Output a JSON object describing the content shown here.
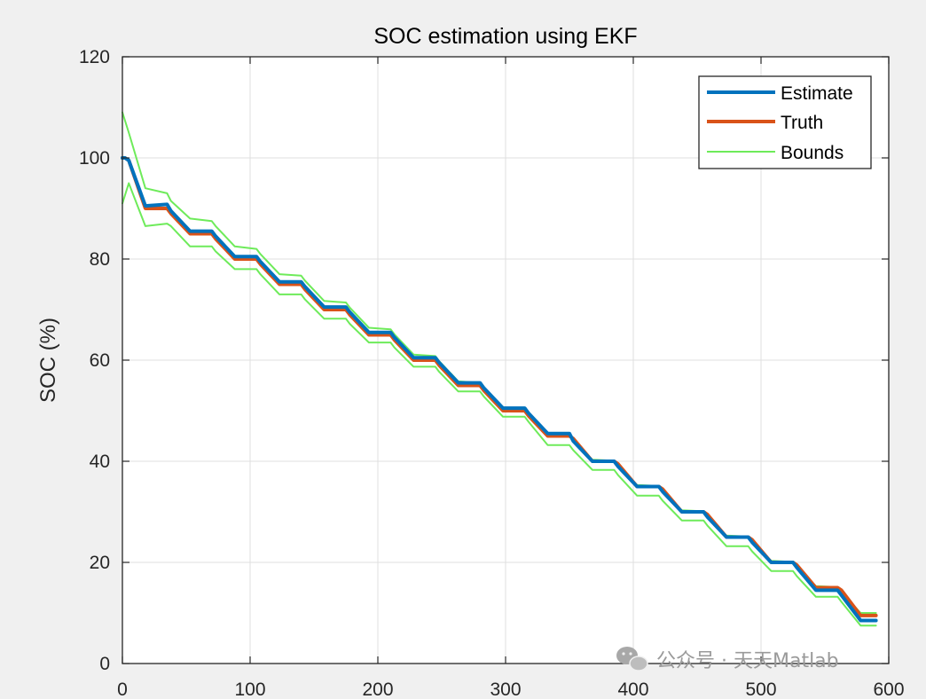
{
  "chart_data": {
    "type": "line",
    "title": "SOC estimation using EKF",
    "xlabel": "",
    "ylabel": "SOC (%)",
    "xlim": [
      0,
      600
    ],
    "ylim": [
      0,
      120
    ],
    "xticks": [
      0,
      100,
      200,
      300,
      400,
      500,
      600
    ],
    "yticks": [
      0,
      20,
      40,
      60,
      80,
      100,
      120
    ],
    "grid": true,
    "legend_position": "top-right",
    "legend": [
      "Estimate",
      "Truth",
      "Bounds"
    ],
    "series": [
      {
        "name": "Estimate",
        "color": "#0072BD",
        "x": [
          0,
          2,
          5,
          18,
          35,
          38,
          53,
          70,
          73,
          88,
          105,
          108,
          123,
          140,
          143,
          158,
          175,
          178,
          193,
          210,
          213,
          228,
          245,
          248,
          263,
          280,
          283,
          298,
          315,
          318,
          333,
          350,
          353,
          368,
          385,
          388,
          403,
          420,
          423,
          438,
          455,
          458,
          473,
          490,
          493,
          508,
          525,
          528,
          543,
          560,
          563,
          578,
          590
        ],
        "y": [
          100,
          100,
          99.5,
          90.5,
          90.8,
          89.5,
          85.5,
          85.5,
          84.5,
          80.5,
          80.5,
          79.5,
          75.5,
          75.5,
          74.5,
          70.5,
          70.5,
          69.5,
          65.5,
          65.5,
          64.5,
          60.5,
          60.5,
          59.5,
          55.5,
          55.5,
          54.5,
          50.5,
          50.5,
          49.5,
          45.5,
          45.5,
          44,
          40,
          40,
          39,
          35,
          35,
          34,
          30,
          30,
          29,
          25,
          25,
          24,
          20,
          20,
          19,
          14.5,
          14.5,
          13.5,
          8.5,
          8.5
        ]
      },
      {
        "name": "Truth",
        "color": "#D95319",
        "x": [
          0,
          2,
          5,
          18,
          35,
          38,
          53,
          70,
          73,
          88,
          105,
          108,
          123,
          140,
          143,
          158,
          175,
          178,
          193,
          210,
          213,
          228,
          245,
          248,
          263,
          280,
          283,
          298,
          315,
          318,
          333,
          350,
          353,
          368,
          385,
          388,
          403,
          420,
          423,
          438,
          455,
          458,
          473,
          490,
          493,
          508,
          525,
          528,
          543,
          560,
          563,
          578,
          590
        ],
        "y": [
          100,
          100,
          99.5,
          90,
          90,
          89,
          85,
          85,
          84,
          80,
          80,
          79,
          75,
          75,
          74,
          70,
          70,
          69,
          65,
          65,
          64,
          60,
          60,
          59,
          55,
          55,
          54,
          50,
          50,
          49,
          45,
          45,
          44.5,
          40,
          40,
          39.5,
          35,
          35,
          34.5,
          30,
          30,
          29.5,
          25,
          25,
          24.5,
          20,
          20,
          19.5,
          15,
          15,
          14.5,
          9.5,
          9.5
        ]
      },
      {
        "name": "Bounds",
        "color": "#6EEB5A",
        "x": [
          0,
          5,
          18,
          35,
          38,
          53,
          70,
          73,
          88,
          105,
          108,
          123,
          140,
          143,
          158,
          175,
          178,
          193,
          210,
          213,
          228,
          245,
          248,
          263,
          280,
          283,
          298,
          315,
          318,
          333,
          350,
          353,
          368,
          385,
          388,
          403,
          420,
          423,
          438,
          455,
          458,
          473,
          490,
          493,
          508,
          525,
          528,
          543,
          560,
          563,
          578,
          590
        ],
        "y": [
          109,
          105,
          94,
          93,
          91.5,
          88,
          87.5,
          86.5,
          82.5,
          82,
          81,
          77,
          76.7,
          75.7,
          71.7,
          71.4,
          70.4,
          66.4,
          66.1,
          65.1,
          61.1,
          60.8,
          59.8,
          55.8,
          55.5,
          54.5,
          50.5,
          50.3,
          49.3,
          45.3,
          45.1,
          44.1,
          40.3,
          40.1,
          39.1,
          35.3,
          35.1,
          34.1,
          30.3,
          30.1,
          29.1,
          25.3,
          25.1,
          24.1,
          20.3,
          20.1,
          19.1,
          15.3,
          15.1,
          14.1,
          10,
          10
        ]
      },
      {
        "name": "",
        "color": "#6EEB5A",
        "x": [
          0,
          5,
          18,
          35,
          38,
          53,
          70,
          73,
          88,
          105,
          108,
          123,
          140,
          143,
          158,
          175,
          178,
          193,
          210,
          213,
          228,
          245,
          248,
          263,
          280,
          283,
          298,
          315,
          318,
          333,
          350,
          353,
          368,
          385,
          388,
          403,
          420,
          423,
          438,
          455,
          458,
          473,
          490,
          493,
          508,
          525,
          528,
          543,
          560,
          563,
          578,
          590
        ],
        "y": [
          91,
          95,
          86.5,
          87,
          86.5,
          82.5,
          82.5,
          81.5,
          78,
          78,
          77,
          73,
          73,
          72,
          68.2,
          68.2,
          67.2,
          63.5,
          63.5,
          62.5,
          58.7,
          58.7,
          57.7,
          53.8,
          53.8,
          52.8,
          48.8,
          48.8,
          47.8,
          43.2,
          43.2,
          42.2,
          38.3,
          38.3,
          37.3,
          33.2,
          33.2,
          32.2,
          28.3,
          28.3,
          27.3,
          23.2,
          23.2,
          22.2,
          18.3,
          18.3,
          17.3,
          13.2,
          13.2,
          12.2,
          7.5,
          7.5
        ]
      }
    ]
  },
  "watermark": {
    "icon": "wechat-icon",
    "text": "公众号 · 天天Matlab"
  }
}
